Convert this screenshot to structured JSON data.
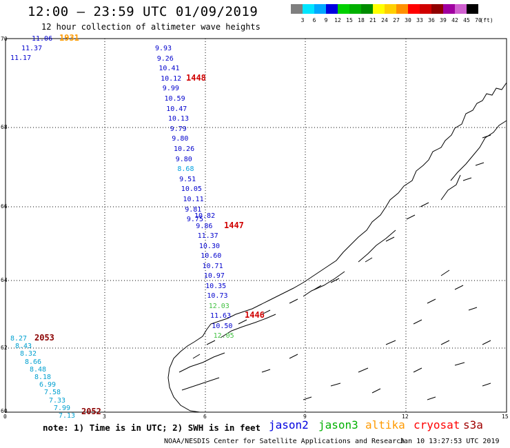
{
  "header": {
    "title": "12:00 – 23:59 UTC 01/09/2019",
    "subtitle": "12 hour collection of altimeter wave heights"
  },
  "legend": {
    "unit": "(ft)",
    "bins": [
      {
        "label": "3",
        "color": "#7f7f7f"
      },
      {
        "label": "6",
        "color": "#00e5ff"
      },
      {
        "label": "9",
        "color": "#00a8ff"
      },
      {
        "label": "12",
        "color": "#0000e0"
      },
      {
        "label": "15",
        "color": "#00d000"
      },
      {
        "label": "18",
        "color": "#00b000"
      },
      {
        "label": "21",
        "color": "#008c00"
      },
      {
        "label": "24",
        "color": "#ffff00"
      },
      {
        "label": "27",
        "color": "#ffd000"
      },
      {
        "label": "30",
        "color": "#ff9000"
      },
      {
        "label": "33",
        "color": "#ff0000"
      },
      {
        "label": "36",
        "color": "#d00000"
      },
      {
        "label": "39",
        "color": "#900000"
      },
      {
        "label": "42",
        "color": "#a000a0"
      },
      {
        "label": "45",
        "color": "#d060d0"
      },
      {
        "label": "70",
        "color": "#000000"
      }
    ]
  },
  "axes": {
    "lon_labels": [
      "0",
      "3",
      "6",
      "9",
      "12",
      "15"
    ],
    "lat_labels": [
      "70",
      "68",
      "66",
      "64",
      "62",
      "60"
    ]
  },
  "tracks": [
    {
      "name": "track-northwest",
      "time": "1931",
      "color": "#ff9a00",
      "points": [
        [
          "11.06",
          11.06,
          "#0000cd"
        ],
        [
          "11.37",
          11.37,
          "#0000cd"
        ],
        [
          "11.17",
          11.17,
          "#0000cd"
        ]
      ]
    },
    {
      "name": "track-norwegian-sea",
      "time": "1448",
      "color": "#d00000",
      "points": [
        [
          "9.93",
          9.93,
          "#0000cd"
        ],
        [
          "9.26",
          9.26,
          "#0000cd"
        ],
        [
          "10.41",
          10.41,
          "#0000cd"
        ],
        [
          "10.12",
          10.12,
          "#0000cd"
        ],
        [
          "9.99",
          9.99,
          "#0000cd"
        ],
        [
          "10.59",
          10.59,
          "#0000cd"
        ],
        [
          "10.47",
          10.47,
          "#0000cd"
        ],
        [
          "10.13",
          10.13,
          "#0000cd"
        ],
        [
          "9.79",
          9.79,
          "#0000cd"
        ],
        [
          "9.80",
          9.8,
          "#0000cd"
        ],
        [
          "10.26",
          10.26,
          "#0000cd"
        ],
        [
          "9.80",
          9.8,
          "#0000cd"
        ],
        [
          "8.68",
          8.68,
          "#00a0e0"
        ],
        [
          "9.51",
          9.51,
          "#0000cd"
        ],
        [
          "10.05",
          10.05,
          "#0000cd"
        ],
        [
          "10.11",
          10.11,
          "#0000cd"
        ],
        [
          "9.81",
          9.81,
          "#0000cd"
        ],
        [
          "9.75",
          9.75,
          "#0000cd"
        ]
      ]
    },
    {
      "name": "track-mid-norway",
      "time": "1447",
      "color": "#d00000",
      "points": [
        [
          "10.82",
          10.82,
          "#0000cd"
        ],
        [
          "9.86",
          9.86,
          "#0000cd"
        ],
        [
          "11.37",
          11.37,
          "#0000cd"
        ],
        [
          "10.30",
          10.3,
          "#0000cd"
        ],
        [
          "10.60",
          10.6,
          "#0000cd"
        ],
        [
          "10.71",
          10.71,
          "#0000cd"
        ],
        [
          "10.97",
          10.97,
          "#0000cd"
        ],
        [
          "10.35",
          10.35,
          "#0000cd"
        ],
        [
          "10.73",
          10.73,
          "#0000cd"
        ],
        [
          "12.03",
          12.03,
          "#40c040"
        ],
        [
          "11.63",
          11.63,
          "#0000cd"
        ],
        [
          "10.50",
          10.5,
          "#0000cd"
        ],
        [
          "12.05",
          12.05,
          "#40c040"
        ]
      ]
    },
    {
      "name": "track-coastal-end",
      "time": "1446",
      "color": "#d00000",
      "points": []
    },
    {
      "name": "track-southwest",
      "time": "2053",
      "color": "#8b0000",
      "points": [
        [
          "8.27",
          8.27,
          "#00a0d0"
        ],
        [
          "8.43",
          8.43,
          "#00a0d0"
        ],
        [
          "8.32",
          8.32,
          "#00a0d0"
        ],
        [
          "8.66",
          8.66,
          "#00a0d0"
        ],
        [
          "8.48",
          8.48,
          "#00a0d0"
        ],
        [
          "8.18",
          8.18,
          "#00a0d0"
        ],
        [
          "6.99",
          6.99,
          "#00a0d0"
        ],
        [
          "7.58",
          7.58,
          "#00a0d0"
        ],
        [
          "7.33",
          7.33,
          "#00a0d0"
        ],
        [
          "7.99",
          7.99,
          "#00a0d0"
        ],
        [
          "7.13",
          7.13,
          "#00a0d0"
        ]
      ]
    },
    {
      "name": "track-southwest-end",
      "time": "2052",
      "color": "#8b0000",
      "points": []
    }
  ],
  "footer": {
    "note": "note:  1) Time is in UTC;  2) SWH is in feet",
    "missions": [
      {
        "label": "jason2",
        "color": "#0000e0"
      },
      {
        "label": "jason3",
        "color": "#00b000"
      },
      {
        "label": "altika",
        "color": "#ff9a00"
      },
      {
        "label": "cryosat",
        "color": "#ff0000"
      },
      {
        "label": "s3a",
        "color": "#a00000"
      }
    ],
    "credit": "NOAA/NESDIS Center for Satellite Applications and Research",
    "timestamp": "Jan 10 13:27:53 UTC 2019"
  }
}
